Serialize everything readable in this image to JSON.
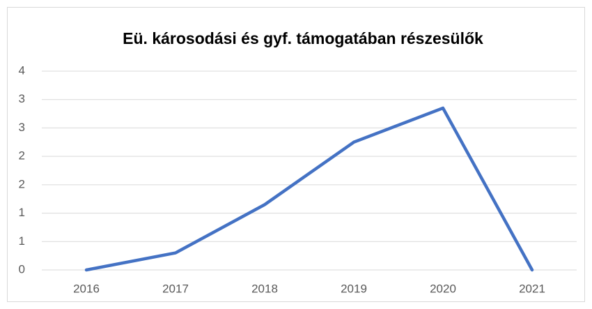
{
  "chart_data": {
    "type": "line",
    "title": "Eü. károsodási és gyf. támogatában részesülők",
    "categories": [
      "2016",
      "2017",
      "2018",
      "2019",
      "2020",
      "2021"
    ],
    "series": [
      {
        "color": "#4472c4",
        "values": [
          0,
          0.3,
          1.15,
          2.25,
          2.85,
          0
        ]
      }
    ],
    "ylim": [
      0,
      3.5
    ],
    "yticks": [
      0,
      {
        "value": 0.5,
        "label": "1"
      },
      1,
      {
        "value": 1.5,
        "label": "2"
      },
      2,
      {
        "value": 2.5,
        "label": "3"
      },
      3,
      {
        "value": 3.5,
        "label": "4"
      }
    ],
    "grid": true
  }
}
